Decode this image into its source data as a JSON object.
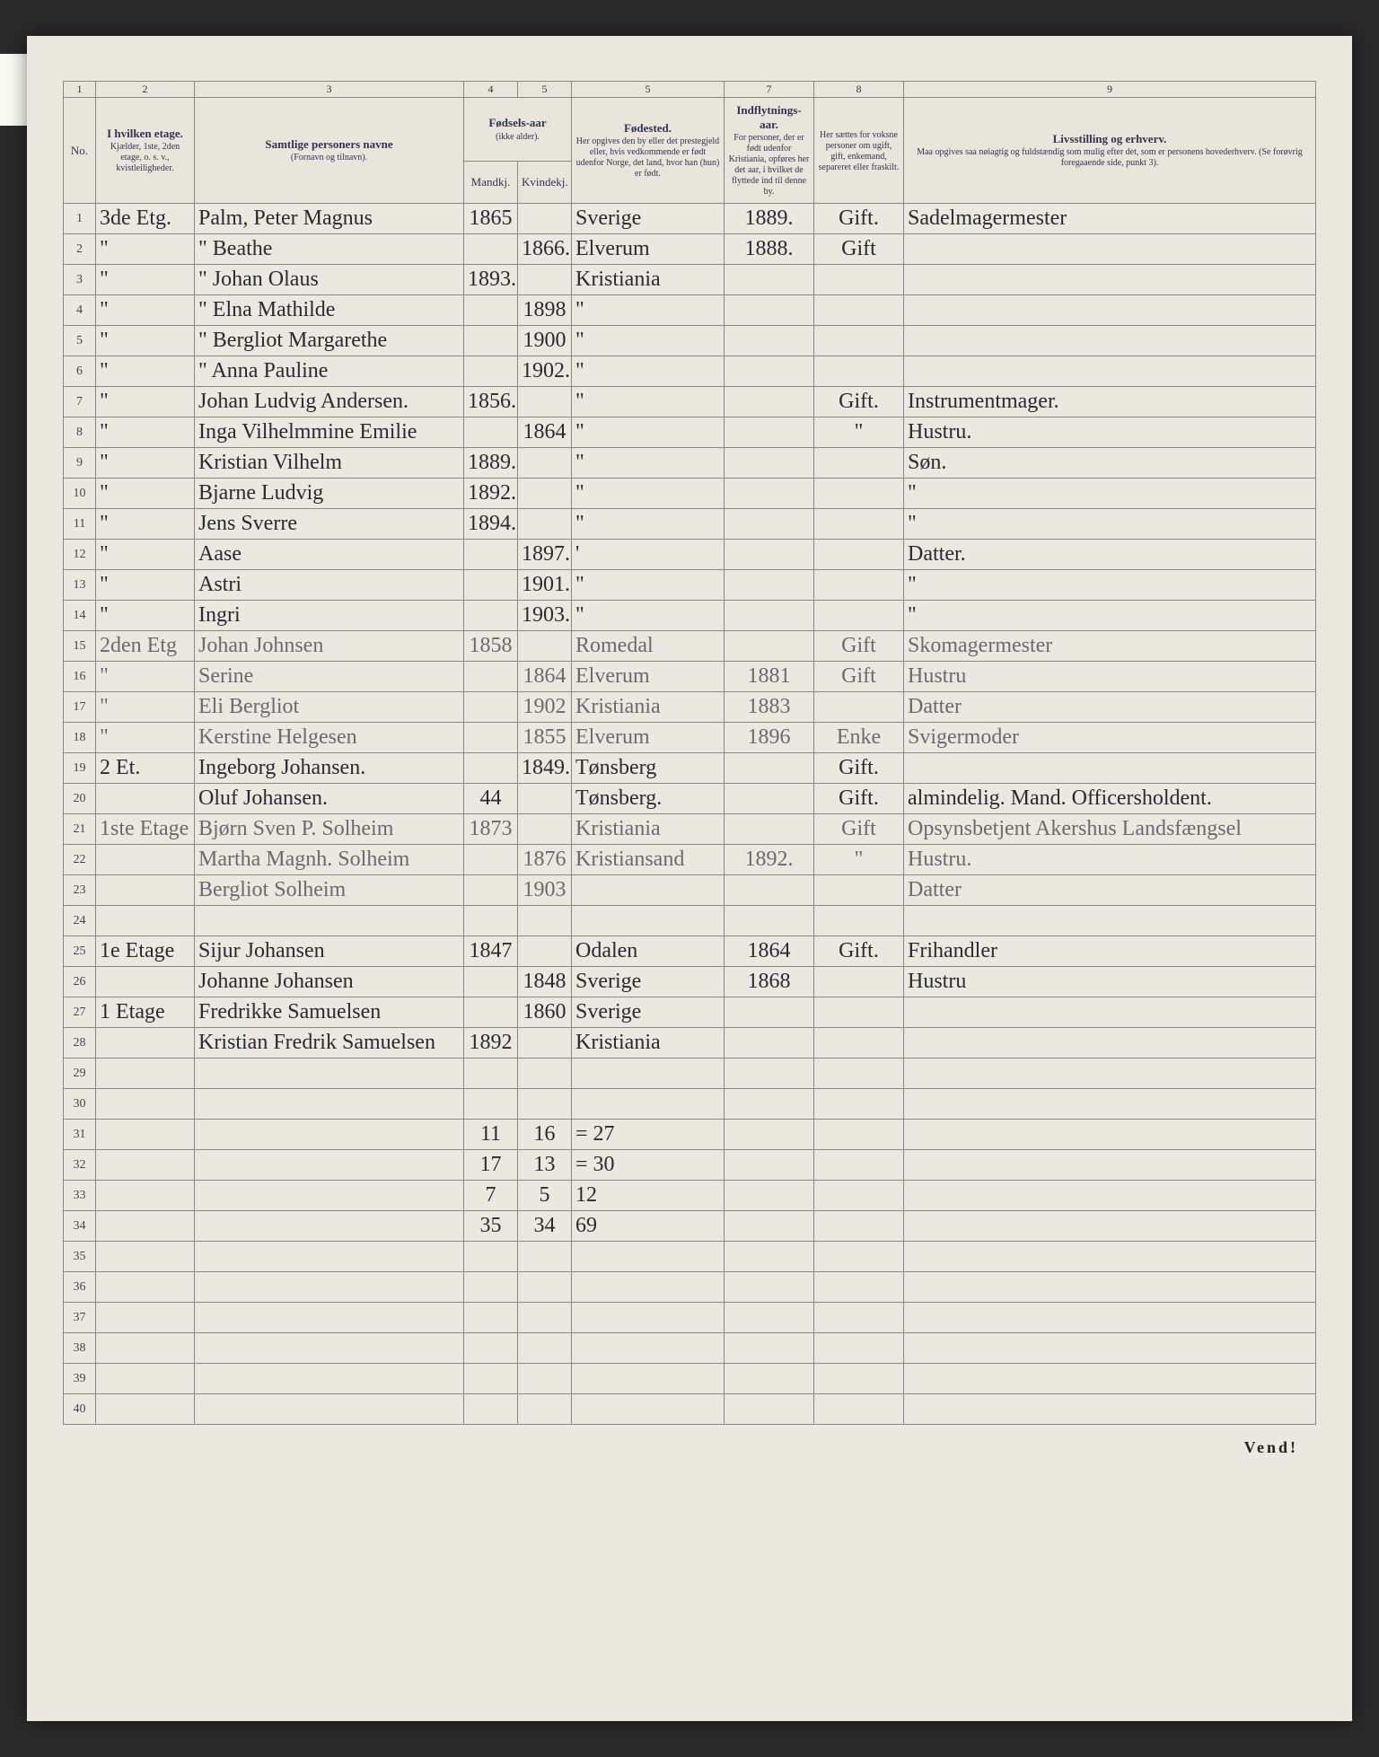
{
  "columns": {
    "nums": [
      "1",
      "2",
      "3",
      "4",
      "5",
      "5",
      "7",
      "8",
      "9"
    ],
    "no": "No.",
    "etage": {
      "title": "I hvilken etage.",
      "sub": "Kjælder, 1ste, 2den etage, o. s. v., kvistleiligheder."
    },
    "navn": {
      "title": "Samtlige personers navne",
      "sub": "(Fornavn og tilnavn)."
    },
    "faar": {
      "title": "Fødsels-aar",
      "sub": "(ikke alder).",
      "m": "Mandkj.",
      "k": "Kvindekj."
    },
    "fsted": {
      "title": "Fødested.",
      "sub": "Her opgives den by eller det prestegjeld eller, hvis vedkommende er født udenfor Norge, det land, hvor han (hun) er født."
    },
    "indfl": {
      "title": "Indflytnings-aar.",
      "sub": "For personer, der er født udenfor Kristiania, opføres her det aar, i hvilket de flyttede ind til denne by."
    },
    "civil": {
      "title": "Her sættes for voksne personer om ugift, gift, enkemand, separeret eller fraskilt."
    },
    "erhv": {
      "title": "Livsstilling og erhverv.",
      "sub": "Maa opgives saa nøiagtig og fuldstændig som mulig efter det, som er personens hovederhverv. (Se forøvrig foregaaende side, punkt 3)."
    }
  },
  "rows": [
    {
      "no": "1",
      "etage": "3de Etg.",
      "navn": "Palm, Peter Magnus",
      "m": "1865",
      "k": "",
      "fsted": "Sverige",
      "indfl": "1889.",
      "civil": "Gift.",
      "erhv": "Sadelmagermester"
    },
    {
      "no": "2",
      "etage": "\"",
      "navn": "\"    Beathe",
      "m": "",
      "k": "1866.",
      "fsted": "Elverum",
      "indfl": "1888.",
      "civil": "Gift",
      "erhv": ""
    },
    {
      "no": "3",
      "etage": "\"",
      "navn": "\"    Johan Olaus",
      "m": "1893.",
      "k": "",
      "fsted": "Kristiania",
      "indfl": "",
      "civil": "",
      "erhv": ""
    },
    {
      "no": "4",
      "etage": "\"",
      "navn": "\"    Elna Mathilde",
      "m": "",
      "k": "1898",
      "fsted": "\"",
      "indfl": "",
      "civil": "",
      "erhv": ""
    },
    {
      "no": "5",
      "etage": "\"",
      "navn": "\"    Bergliot Margarethe",
      "m": "",
      "k": "1900",
      "fsted": "\"",
      "indfl": "",
      "civil": "",
      "erhv": ""
    },
    {
      "no": "6",
      "etage": "\"",
      "navn": "\"    Anna Pauline",
      "m": "",
      "k": "1902.",
      "fsted": "\"",
      "indfl": "",
      "civil": "",
      "erhv": ""
    },
    {
      "no": "7",
      "etage": "\"",
      "navn": "Johan Ludvig Andersen.",
      "m": "1856.",
      "k": "",
      "fsted": "\"",
      "indfl": "",
      "civil": "Gift.",
      "erhv": "Instrumentmager."
    },
    {
      "no": "8",
      "etage": "\"",
      "navn": "Inga Vilhelmmine Emilie",
      "m": "",
      "k": "1864",
      "fsted": "\"",
      "indfl": "",
      "civil": "\"",
      "erhv": "Hustru."
    },
    {
      "no": "9",
      "etage": "\"",
      "navn": "Kristian Vilhelm",
      "m": "1889.",
      "k": "",
      "fsted": "\"",
      "indfl": "",
      "civil": "",
      "erhv": "Søn."
    },
    {
      "no": "10",
      "etage": "\"",
      "navn": "Bjarne Ludvig",
      "m": "1892.",
      "k": "",
      "fsted": "\"",
      "indfl": "",
      "civil": "",
      "erhv": "\""
    },
    {
      "no": "11",
      "etage": "\"",
      "navn": "Jens Sverre",
      "m": "1894.",
      "k": "",
      "fsted": "\"",
      "indfl": "",
      "civil": "",
      "erhv": "\""
    },
    {
      "no": "12",
      "etage": "\"",
      "navn": "Aase",
      "m": "",
      "k": "1897.",
      "fsted": "'",
      "indfl": "",
      "civil": "",
      "erhv": "Datter."
    },
    {
      "no": "13",
      "etage": "\"",
      "navn": "Astri",
      "m": "",
      "k": "1901.",
      "fsted": "\"",
      "indfl": "",
      "civil": "",
      "erhv": "\""
    },
    {
      "no": "14",
      "etage": "\"",
      "navn": "Ingri",
      "m": "",
      "k": "1903.",
      "fsted": "\"",
      "indfl": "",
      "civil": "",
      "erhv": "\""
    },
    {
      "no": "15",
      "etage": "2den Etg",
      "navn": "Johan Johnsen",
      "m": "1858",
      "k": "",
      "fsted": "Romedal",
      "indfl": "",
      "civil": "Gift",
      "erhv": "Skomagermester",
      "faint": true
    },
    {
      "no": "16",
      "etage": "\"",
      "navn": "Serine",
      "m": "",
      "k": "1864",
      "fsted": "Elverum",
      "indfl": "1881",
      "civil": "Gift",
      "erhv": "Hustru",
      "faint": true
    },
    {
      "no": "17",
      "etage": "\"",
      "navn": "Eli Bergliot",
      "m": "",
      "k": "1902",
      "fsted": "Kristiania",
      "indfl": "1883",
      "civil": "",
      "erhv": "Datter",
      "faint": true
    },
    {
      "no": "18",
      "etage": "\"",
      "navn": "Kerstine Helgesen",
      "m": "",
      "k": "1855",
      "fsted": "Elverum",
      "indfl": "1896",
      "civil": "Enke",
      "erhv": "Svigermoder",
      "faint": true
    },
    {
      "no": "19",
      "etage": "2 Et.",
      "navn": "Ingeborg Johansen.",
      "m": "",
      "k": "1849.",
      "fsted": "Tønsberg",
      "indfl": "",
      "civil": "Gift.",
      "erhv": ""
    },
    {
      "no": "20",
      "etage": "",
      "navn": "Oluf Johansen.",
      "m": "44",
      "k": "",
      "fsted": "Tønsberg.",
      "indfl": "",
      "civil": "Gift.",
      "erhv": "almindelig. Mand. Officersholdent.",
      "struck_k": true
    },
    {
      "no": "21",
      "etage": "1ste Etage",
      "navn": "Bjørn Sven P. Solheim",
      "m": "1873",
      "k": "",
      "fsted": "Kristiania",
      "indfl": "",
      "civil": "Gift",
      "erhv": "Opsynsbetjent Akershus Landsfængsel",
      "faint": true
    },
    {
      "no": "22",
      "etage": "",
      "navn": "Martha Magnh. Solheim",
      "m": "",
      "k": "1876",
      "fsted": "Kristiansand",
      "indfl": "1892.",
      "civil": "\"",
      "erhv": "Hustru.",
      "faint": true
    },
    {
      "no": "23",
      "etage": "",
      "navn": "Bergliot Solheim",
      "m": "",
      "k": "1903",
      "fsted": "",
      "indfl": "",
      "civil": "",
      "erhv": "Datter",
      "faint": true
    },
    {
      "no": "24",
      "etage": "",
      "navn": "",
      "m": "",
      "k": "",
      "fsted": "",
      "indfl": "",
      "civil": "",
      "erhv": ""
    },
    {
      "no": "25",
      "etage": "1e Etage",
      "navn": "Sijur Johansen",
      "m": "1847",
      "k": "",
      "fsted": "Odalen",
      "indfl": "1864",
      "civil": "Gift.",
      "erhv": "Frihandler"
    },
    {
      "no": "26",
      "etage": "",
      "navn": "Johanne Johansen",
      "m": "",
      "k": "1848",
      "fsted": "Sverige",
      "indfl": "1868",
      "civil": "",
      "erhv": "Hustru"
    },
    {
      "no": "27",
      "etage": "1 Etage",
      "navn": "Fredrikke Samuelsen",
      "m": "",
      "k": "1860",
      "fsted": "Sverige",
      "indfl": "",
      "civil": "",
      "erhv": ""
    },
    {
      "no": "28",
      "etage": "",
      "navn": "Kristian Fredrik Samuelsen",
      "m": "1892",
      "k": "",
      "fsted": "Kristiania",
      "indfl": "",
      "civil": "",
      "erhv": ""
    },
    {
      "no": "29",
      "etage": "",
      "navn": "",
      "m": "",
      "k": "",
      "fsted": "",
      "indfl": "",
      "civil": "",
      "erhv": ""
    },
    {
      "no": "30",
      "etage": "",
      "navn": "",
      "m": "",
      "k": "",
      "fsted": "",
      "indfl": "",
      "civil": "",
      "erhv": ""
    }
  ],
  "sums": [
    {
      "no": "31",
      "m": "11",
      "k": "16",
      "t": "= 27"
    },
    {
      "no": "32",
      "m": "17",
      "k": "13",
      "t": "= 30"
    },
    {
      "no": "33",
      "m": "7",
      "k": "5",
      "t": "12",
      "line": true
    },
    {
      "no": "34",
      "m": "35",
      "k": "34",
      "t": "69",
      "topline": true
    }
  ],
  "empty": [
    "35",
    "36",
    "37",
    "38",
    "39",
    "40"
  ],
  "vend": "Vend!"
}
